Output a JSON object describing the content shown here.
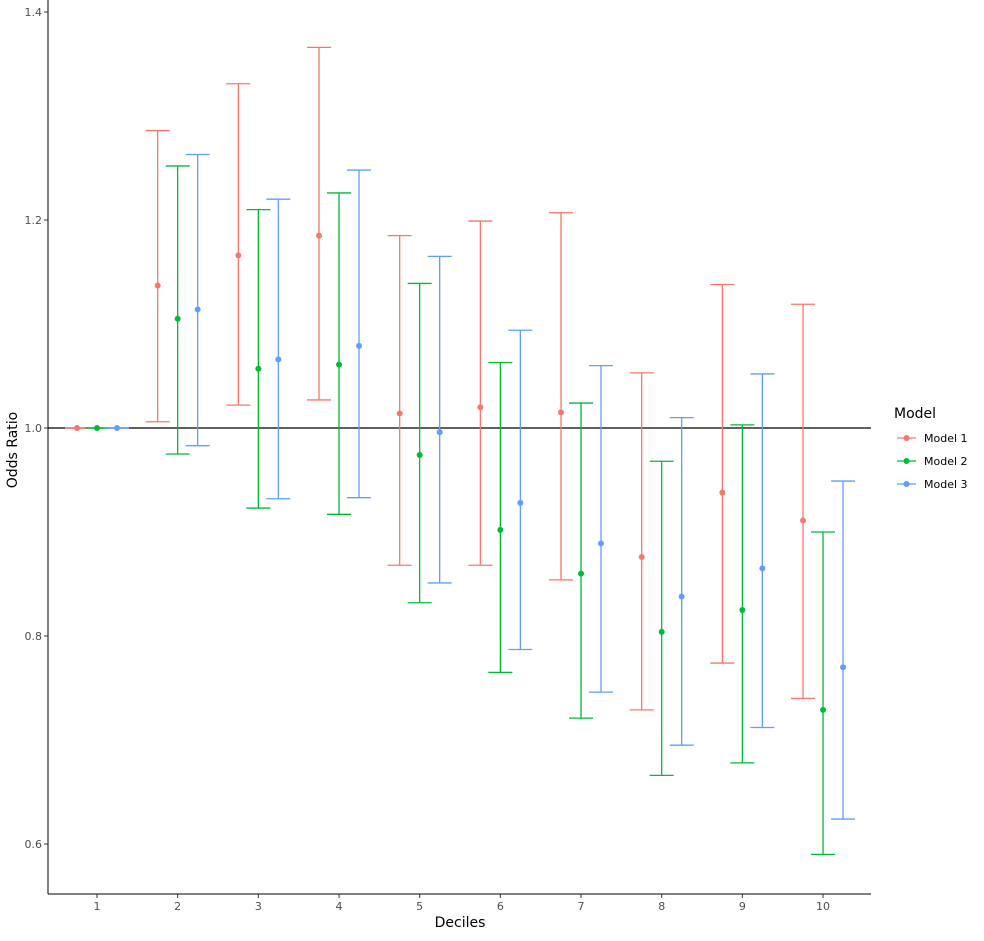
{
  "chart_data": {
    "type": "errorbar",
    "title": "",
    "xlabel": "Deciles",
    "ylabel": "Odds Ratio",
    "categories": [
      "1",
      "2",
      "3",
      "4",
      "5",
      "6",
      "7",
      "8",
      "9",
      "10"
    ],
    "yticks": [
      "0.6",
      "0.8",
      "1.0",
      "1.2",
      "1.4"
    ],
    "ylim": [
      0.553,
      1.41
    ],
    "reference_line": 1.0,
    "grid": false,
    "legend": {
      "title": "Model",
      "position": "right"
    },
    "series": [
      {
        "name": "Model 1",
        "color": "#F8766D",
        "values": [
          1.0,
          1.137,
          1.166,
          1.185,
          1.014,
          1.02,
          1.015,
          0.876,
          0.938,
          0.911
        ],
        "lower": [
          1.0,
          1.006,
          1.022,
          1.027,
          0.868,
          0.868,
          0.854,
          0.729,
          0.774,
          0.74
        ],
        "upper": [
          1.0,
          1.286,
          1.331,
          1.366,
          1.185,
          1.199,
          1.207,
          1.053,
          1.138,
          1.119
        ]
      },
      {
        "name": "Model 2",
        "color": "#00BA38",
        "values": [
          1.0,
          1.105,
          1.057,
          1.061,
          0.974,
          0.902,
          0.86,
          0.804,
          0.825,
          0.729
        ],
        "lower": [
          1.0,
          0.975,
          0.923,
          0.917,
          0.832,
          0.765,
          0.721,
          0.666,
          0.678,
          0.59
        ],
        "upper": [
          1.0,
          1.252,
          1.21,
          1.226,
          1.139,
          1.063,
          1.024,
          0.968,
          1.003,
          0.9
        ]
      },
      {
        "name": "Model 3",
        "color": "#619CFF",
        "values": [
          1.0,
          1.114,
          1.066,
          1.079,
          0.996,
          0.928,
          0.889,
          0.838,
          0.865,
          0.77
        ],
        "lower": [
          1.0,
          0.983,
          0.932,
          0.933,
          0.851,
          0.787,
          0.746,
          0.695,
          0.712,
          0.624
        ],
        "upper": [
          1.0,
          1.263,
          1.22,
          1.248,
          1.165,
          1.094,
          1.06,
          1.01,
          1.052,
          0.949
        ]
      }
    ]
  }
}
